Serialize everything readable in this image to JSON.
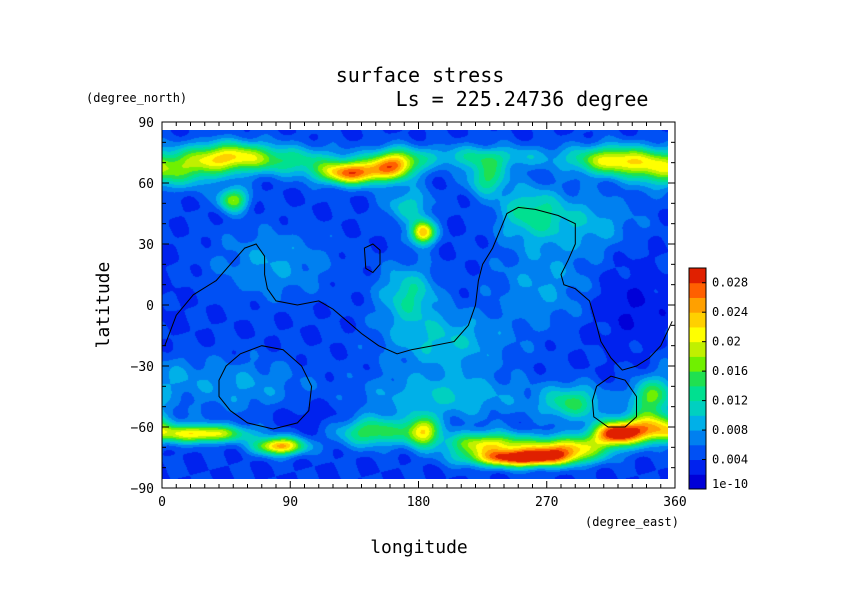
{
  "chart_data": {
    "type": "heatmap",
    "title": "surface stress",
    "subtitle": "Ls = 225.24736 degree",
    "xlabel": "longitude",
    "ylabel": "latitude",
    "x_units": "(degree_east)",
    "y_units": "(degree_north)",
    "xlim": [
      0,
      360
    ],
    "ylim": [
      -90,
      90
    ],
    "x_ticks": [
      "0",
      "90",
      "180",
      "270",
      "360"
    ],
    "x_tick_values": [
      0,
      90,
      180,
      270,
      360
    ],
    "y_ticks": [
      "90",
      "60",
      "30",
      "0",
      "−30",
      "−60",
      "−90"
    ],
    "y_tick_values": [
      90,
      60,
      30,
      0,
      -30,
      -60,
      -90
    ],
    "data_lat_range": [
      -85,
      85
    ],
    "colorbar": {
      "ticks": [
        "0.028",
        "0.024",
        "0.02",
        "0.016",
        "0.012",
        "0.008",
        "0.004",
        "1e-10"
      ],
      "tick_values": [
        0.028,
        0.024,
        0.02,
        0.016,
        0.012,
        0.008,
        0.004,
        0
      ],
      "range": [
        0,
        0.03
      ],
      "colors": [
        "#0000d8",
        "#0022ee",
        "#0050f4",
        "#0080f0",
        "#00b0e8",
        "#00d0c0",
        "#00e090",
        "#20e050",
        "#70f000",
        "#c0f000",
        "#ffff00",
        "#ffd000",
        "#ffa000",
        "#ff6000",
        "#e02000"
      ]
    },
    "background_value": 0.004,
    "features": [
      {
        "lon": 50,
        "lat": 72,
        "amp": 0.016,
        "slon": 20,
        "slat": 5
      },
      {
        "lon": 20,
        "lat": 66,
        "amp": 0.01,
        "slon": 18,
        "slat": 6
      },
      {
        "lon": 135,
        "lat": 64,
        "amp": 0.022,
        "slon": 16,
        "slat": 4
      },
      {
        "lon": 165,
        "lat": 68,
        "amp": 0.019,
        "slon": 12,
        "slat": 5
      },
      {
        "lon": 95,
        "lat": 70,
        "amp": 0.008,
        "slon": 25,
        "slat": 5
      },
      {
        "lon": 225,
        "lat": 72,
        "amp": 0.007,
        "slon": 40,
        "slat": 4
      },
      {
        "lon": 230,
        "lat": 62,
        "amp": 0.01,
        "slon": 10,
        "slat": 6
      },
      {
        "lon": 320,
        "lat": 70,
        "amp": 0.017,
        "slon": 20,
        "slat": 5
      },
      {
        "lon": 350,
        "lat": 66,
        "amp": 0.01,
        "slon": 14,
        "slat": 6
      },
      {
        "lon": 52,
        "lat": 51,
        "amp": 0.014,
        "slon": 7,
        "slat": 4
      },
      {
        "lon": 185,
        "lat": 35,
        "amp": 0.02,
        "slon": 6,
        "slat": 4
      },
      {
        "lon": 175,
        "lat": 48,
        "amp": 0.007,
        "slon": 12,
        "slat": 6
      },
      {
        "lon": 260,
        "lat": 45,
        "amp": 0.008,
        "slon": 16,
        "slat": 9
      },
      {
        "lon": 300,
        "lat": 40,
        "amp": 0.005,
        "slon": 25,
        "slat": 10
      },
      {
        "lon": 175,
        "lat": 5,
        "amp": 0.008,
        "slon": 14,
        "slat": 10
      },
      {
        "lon": 200,
        "lat": -18,
        "amp": 0.006,
        "slon": 30,
        "slat": 10
      },
      {
        "lon": 80,
        "lat": 20,
        "amp": 0.004,
        "slon": 30,
        "slat": 12
      },
      {
        "lon": 270,
        "lat": 10,
        "amp": 0.004,
        "slon": 25,
        "slat": 15
      },
      {
        "lon": 30,
        "lat": -63,
        "amp": 0.018,
        "slon": 22,
        "slat": 3
      },
      {
        "lon": 85,
        "lat": -69,
        "amp": 0.021,
        "slon": 12,
        "slat": 3
      },
      {
        "lon": 150,
        "lat": -62,
        "amp": 0.012,
        "slon": 18,
        "slat": 5
      },
      {
        "lon": 185,
        "lat": -62,
        "amp": 0.016,
        "slon": 8,
        "slat": 5
      },
      {
        "lon": 230,
        "lat": -68,
        "amp": 0.016,
        "slon": 20,
        "slat": 4
      },
      {
        "lon": 255,
        "lat": -75,
        "amp": 0.025,
        "slon": 25,
        "slat": 3
      },
      {
        "lon": 285,
        "lat": -70,
        "amp": 0.018,
        "slon": 20,
        "slat": 4
      },
      {
        "lon": 320,
        "lat": -63,
        "amp": 0.024,
        "slon": 12,
        "slat": 4
      },
      {
        "lon": 345,
        "lat": -60,
        "amp": 0.018,
        "slon": 15,
        "slat": 5
      },
      {
        "lon": 290,
        "lat": -48,
        "amp": 0.01,
        "slon": 15,
        "slat": 6
      },
      {
        "lon": 345,
        "lat": -45,
        "amp": 0.012,
        "slon": 10,
        "slat": 6
      },
      {
        "lon": 60,
        "lat": -40,
        "amp": 0.004,
        "slon": 30,
        "slat": 10
      },
      {
        "lon": 200,
        "lat": -45,
        "amp": 0.006,
        "slon": 40,
        "slat": 8
      },
      {
        "lon": 10,
        "lat": -35,
        "amp": 0.003,
        "slon": 15,
        "slat": 8
      },
      {
        "lon": 110,
        "lat": -55,
        "amp": -0.002,
        "slon": 25,
        "slat": 6
      },
      {
        "lon": 330,
        "lat": 0,
        "amp": -0.002,
        "slon": 20,
        "slat": 15
      }
    ],
    "contours": [
      {
        "points": [
          [
            2,
            -20
          ],
          [
            10,
            -5
          ],
          [
            22,
            5
          ],
          [
            38,
            12
          ],
          [
            48,
            20
          ],
          [
            58,
            28
          ],
          [
            66,
            30
          ],
          [
            72,
            24
          ],
          [
            72,
            15
          ],
          [
            74,
            8
          ],
          [
            80,
            2
          ],
          [
            95,
            0
          ],
          [
            110,
            2
          ],
          [
            120,
            -2
          ],
          [
            130,
            -8
          ],
          [
            140,
            -14
          ],
          [
            152,
            -20
          ],
          [
            165,
            -24
          ],
          [
            175,
            -22
          ],
          [
            190,
            -20
          ],
          [
            205,
            -18
          ],
          [
            215,
            -10
          ],
          [
            220,
            0
          ],
          [
            222,
            12
          ],
          [
            225,
            20
          ],
          [
            232,
            28
          ],
          [
            238,
            38
          ],
          [
            242,
            45
          ],
          [
            250,
            48
          ],
          [
            262,
            47
          ],
          [
            278,
            44
          ],
          [
            290,
            40
          ],
          [
            290,
            30
          ],
          [
            285,
            22
          ],
          [
            280,
            15
          ],
          [
            282,
            10
          ],
          [
            290,
            8
          ],
          [
            300,
            2
          ],
          [
            305,
            -10
          ],
          [
            308,
            -18
          ],
          [
            315,
            -26
          ],
          [
            323,
            -32
          ],
          [
            333,
            -30
          ],
          [
            342,
            -26
          ],
          [
            350,
            -20
          ],
          [
            358,
            -8
          ]
        ]
      },
      {
        "points": [
          [
            142,
            28
          ],
          [
            148,
            30
          ],
          [
            153,
            27
          ],
          [
            153,
            20
          ],
          [
            148,
            16
          ],
          [
            143,
            18
          ],
          [
            142,
            28
          ]
        ],
        "closed": true
      },
      {
        "points": [
          [
            45,
            -30
          ],
          [
            55,
            -24
          ],
          [
            70,
            -20
          ],
          [
            85,
            -22
          ],
          [
            98,
            -30
          ],
          [
            105,
            -40
          ],
          [
            103,
            -52
          ],
          [
            95,
            -58
          ],
          [
            78,
            -61
          ],
          [
            60,
            -58
          ],
          [
            48,
            -52
          ],
          [
            40,
            -45
          ],
          [
            40,
            -37
          ],
          [
            45,
            -30
          ]
        ],
        "closed": true
      },
      {
        "points": [
          [
            305,
            -40
          ],
          [
            315,
            -35
          ],
          [
            325,
            -37
          ],
          [
            333,
            -45
          ],
          [
            333,
            -55
          ],
          [
            325,
            -60
          ],
          [
            313,
            -60
          ],
          [
            303,
            -55
          ],
          [
            302,
            -47
          ],
          [
            305,
            -40
          ]
        ],
        "closed": true
      }
    ]
  }
}
